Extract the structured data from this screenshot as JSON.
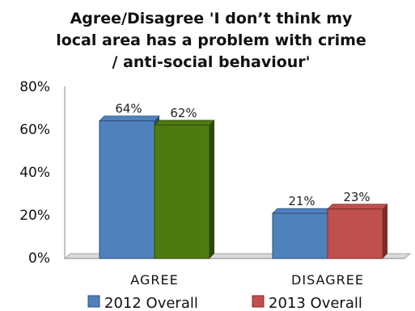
{
  "chart_data": {
    "type": "bar",
    "title_lines": [
      "Agree/Disagree 'I don’t think my",
      "local area has a problem with crime",
      "/ anti-social behaviour'"
    ],
    "categories": [
      "AGREE",
      "DISAGREE"
    ],
    "series": [
      {
        "name": "2012 Overall",
        "values": [
          64,
          21
        ],
        "labels": [
          "64%",
          "21%"
        ],
        "colors": [
          "#4f81bd",
          "#4f81bd"
        ],
        "dark_colors": [
          "#2c4d75",
          "#2c4d75"
        ]
      },
      {
        "name": "2013 Overall",
        "values": [
          62,
          23
        ],
        "labels": [
          "62%",
          "23%"
        ],
        "colors": [
          "#4f7a12",
          "#c0504d"
        ],
        "dark_colors": [
          "#2c4a06",
          "#7f2a28"
        ]
      }
    ],
    "ylim": [
      0,
      80
    ],
    "yticks": [
      "0%",
      "20%",
      "40%",
      "60%",
      "80%"
    ],
    "grid": false,
    "legend_position": "bottom",
    "legend_colors": [
      "#4f81bd",
      "#c0504d"
    ]
  }
}
